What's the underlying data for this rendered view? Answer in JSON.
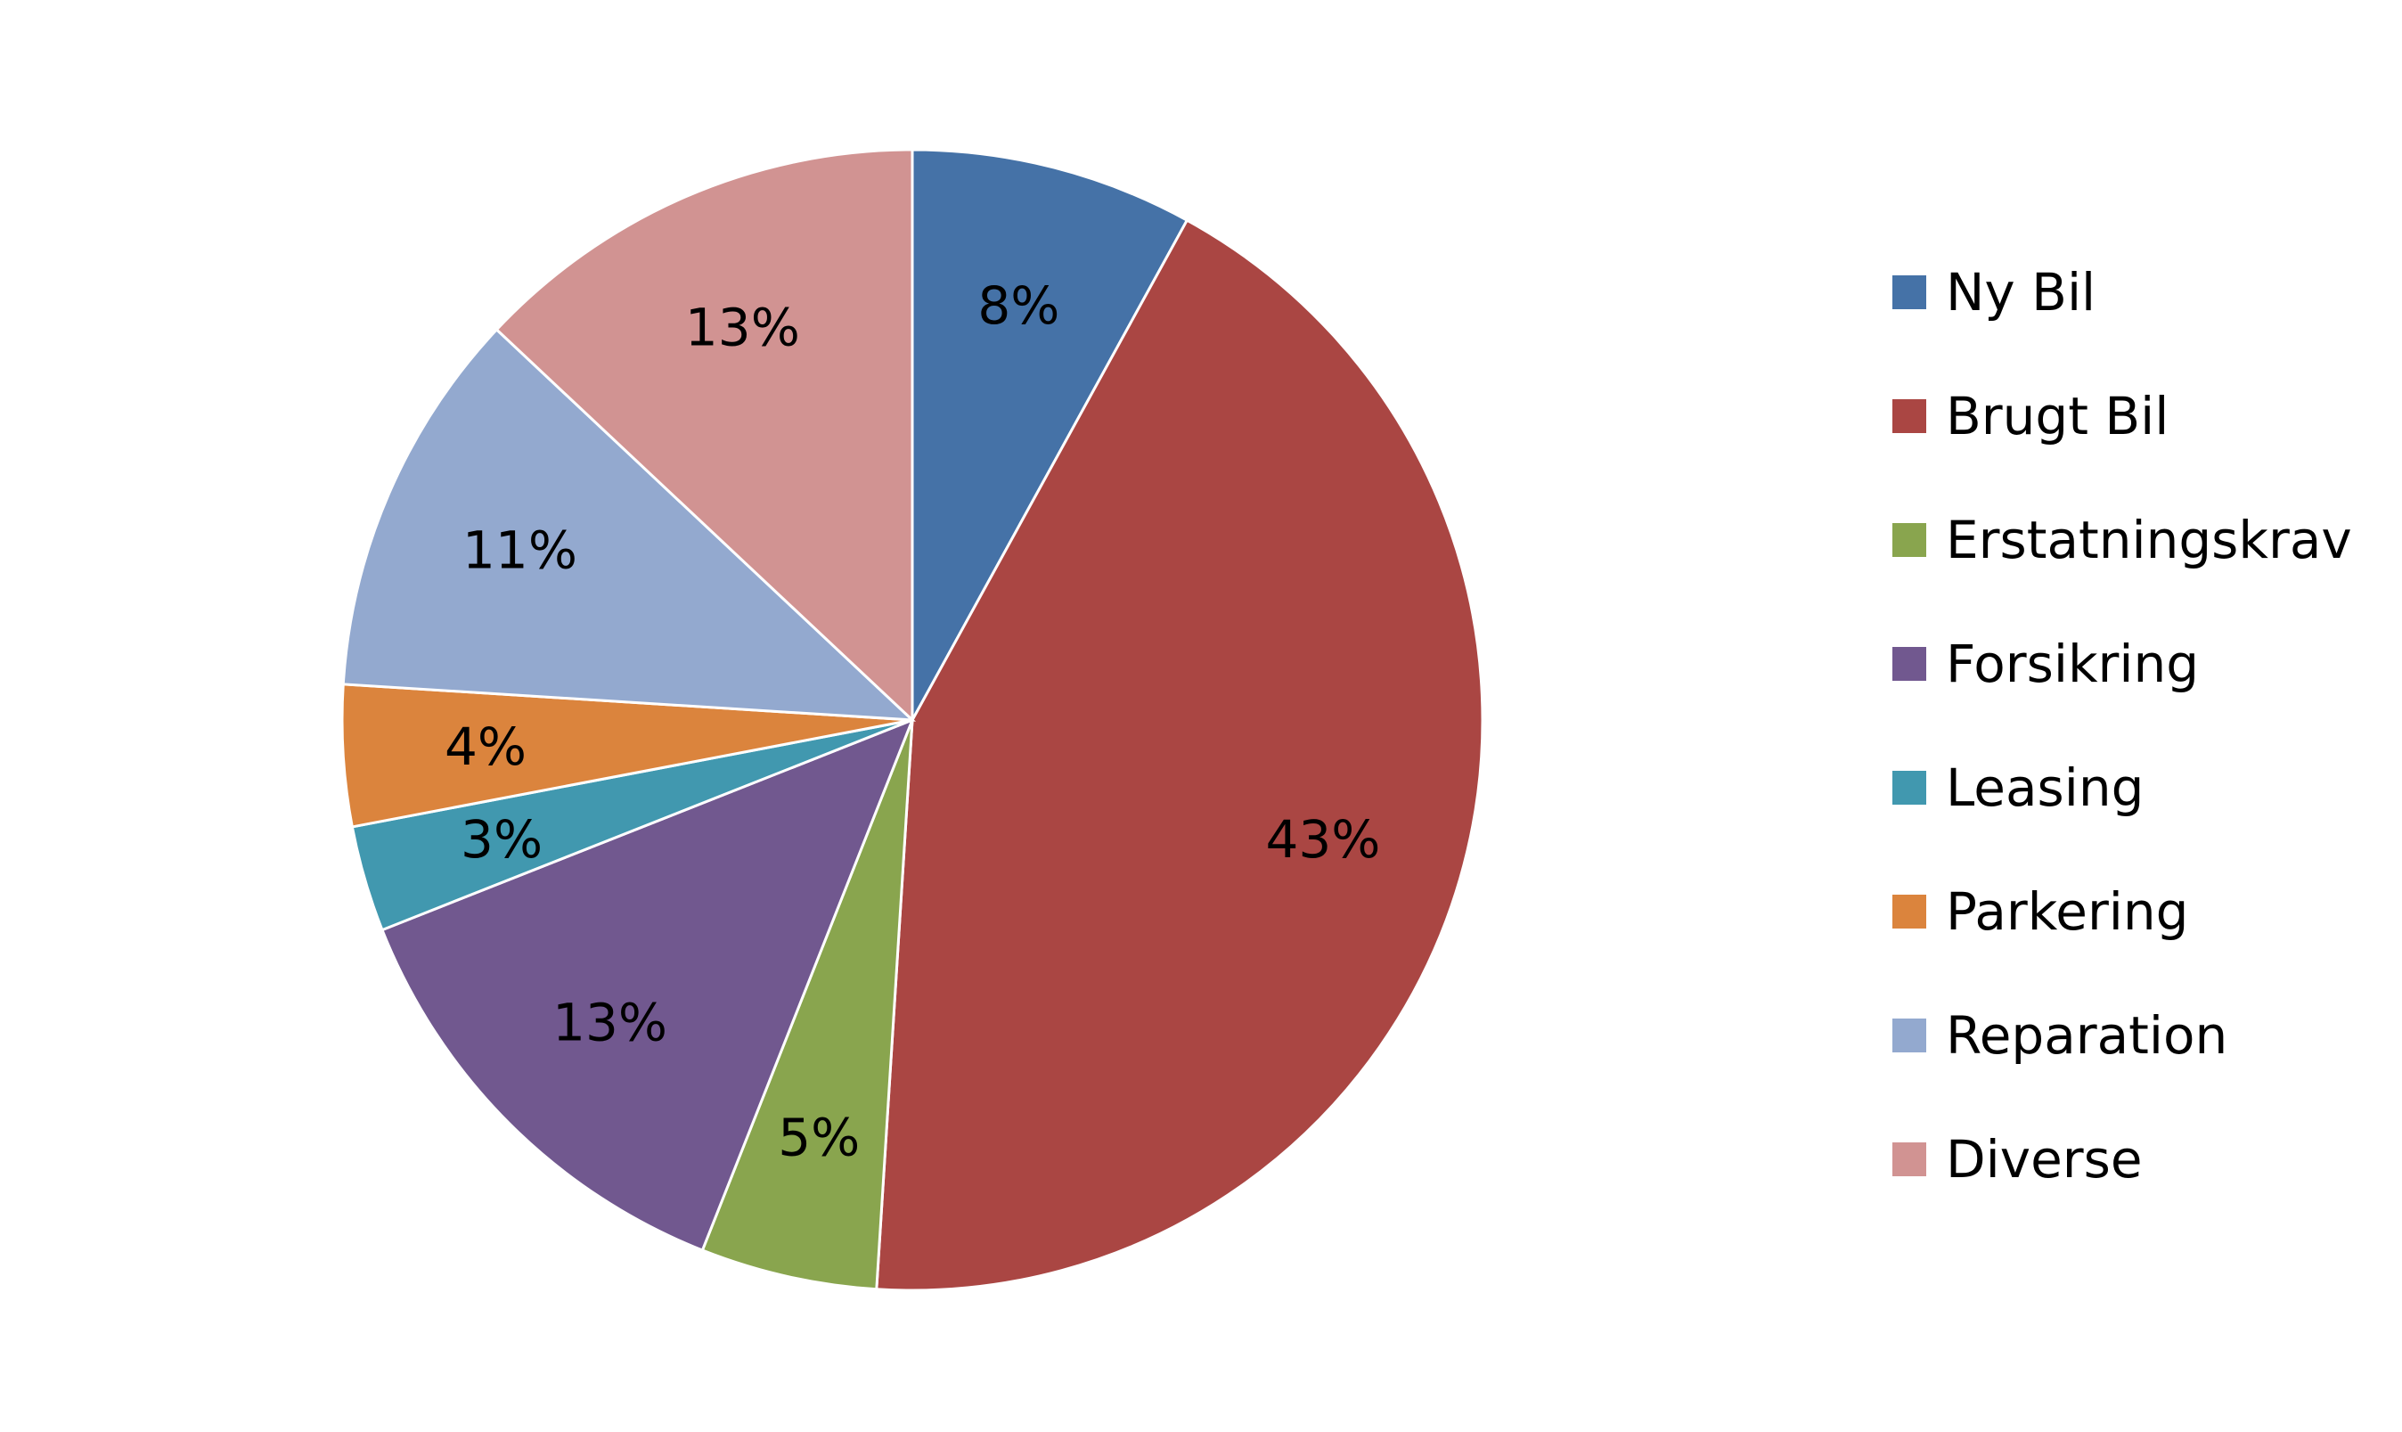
{
  "chart_data": {
    "type": "pie",
    "categories": [
      "Ny Bil",
      "Brugt Bil",
      "Erstatningskrav",
      "Forsikring",
      "Leasing",
      "Parkering",
      "Reparation",
      "Diverse"
    ],
    "values": [
      8,
      43,
      5,
      13,
      3,
      4,
      11,
      13
    ],
    "data_labels": [
      "8%",
      "43%",
      "5%",
      "13%",
      "3%",
      "4%",
      "11%",
      "13%"
    ],
    "colors": [
      "#4572a7",
      "#aa4643",
      "#89a54e",
      "#71588f",
      "#4198af",
      "#db843d",
      "#93a9cf",
      "#d19392"
    ],
    "legend_placement": "right",
    "start_angle": "12 o'clock",
    "direction": "clockwise"
  }
}
